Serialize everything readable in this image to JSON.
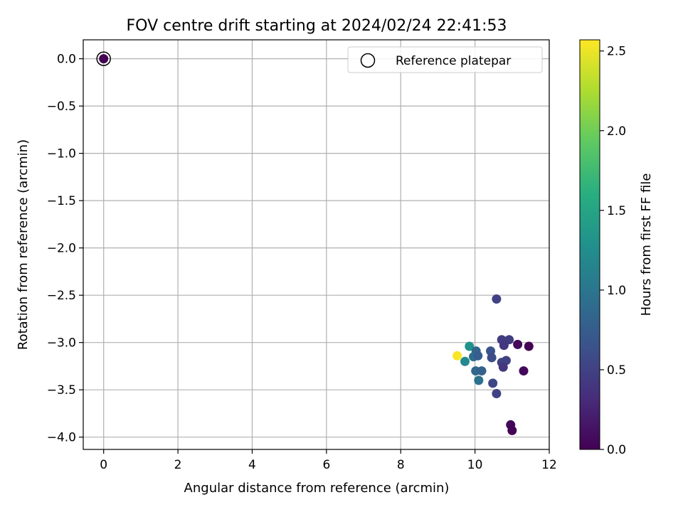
{
  "chart_data": {
    "type": "scatter",
    "title": "FOV centre drift starting at 2024/02/24 22:41:53",
    "xlabel": "Angular distance from reference (arcmin)",
    "ylabel": "Rotation from reference (arcmin)",
    "xlim": [
      -0.55,
      12
    ],
    "ylim": [
      -4.13,
      0.2
    ],
    "xticks": [
      0,
      2,
      4,
      6,
      8,
      10,
      12
    ],
    "xtick_labels": [
      "0",
      "2",
      "4",
      "6",
      "8",
      "10",
      "12"
    ],
    "yticks": [
      0.0,
      -0.5,
      -1.0,
      -1.5,
      -2.0,
      -2.5,
      -3.0,
      -3.5,
      -4.0
    ],
    "ytick_labels": [
      "0.0",
      "−0.5",
      "−1.0",
      "−1.5",
      "−2.0",
      "−2.5",
      "−3.0",
      "−3.5",
      "−4.0"
    ],
    "grid": true,
    "colormap": "viridis",
    "colorbar": {
      "label": "Hours from first FF file",
      "range": [
        0,
        2.57
      ],
      "ticks": [
        0.0,
        0.5,
        1.0,
        1.5,
        2.0,
        2.5
      ],
      "tick_labels": [
        "0.0",
        "0.5",
        "1.0",
        "1.5",
        "2.0",
        "2.5"
      ]
    },
    "legend": {
      "placement": "top-right",
      "entries": [
        "Reference platepar"
      ]
    },
    "reference_point": {
      "x": 0,
      "y": 0,
      "hours": 0.0
    },
    "points": [
      {
        "x": 10.58,
        "y": -2.54,
        "hours": 0.5
      },
      {
        "x": 10.72,
        "y": -2.97,
        "hours": 0.45
      },
      {
        "x": 10.92,
        "y": -2.97,
        "hours": 0.45
      },
      {
        "x": 10.78,
        "y": -3.03,
        "hours": 0.4
      },
      {
        "x": 11.15,
        "y": -3.02,
        "hours": 0.05
      },
      {
        "x": 11.45,
        "y": -3.04,
        "hours": 0.0
      },
      {
        "x": 9.85,
        "y": -3.04,
        "hours": 1.3
      },
      {
        "x": 10.03,
        "y": -3.09,
        "hours": 0.85
      },
      {
        "x": 10.42,
        "y": -3.09,
        "hours": 0.65
      },
      {
        "x": 9.52,
        "y": -3.14,
        "hours": 2.55
      },
      {
        "x": 9.96,
        "y": -3.15,
        "hours": 0.9
      },
      {
        "x": 10.08,
        "y": -3.14,
        "hours": 0.75
      },
      {
        "x": 10.45,
        "y": -3.16,
        "hours": 0.6
      },
      {
        "x": 9.73,
        "y": -3.2,
        "hours": 1.2
      },
      {
        "x": 10.72,
        "y": -3.21,
        "hours": 0.5
      },
      {
        "x": 10.84,
        "y": -3.19,
        "hours": 0.5
      },
      {
        "x": 10.76,
        "y": -3.26,
        "hours": 0.4
      },
      {
        "x": 10.02,
        "y": -3.3,
        "hours": 0.85
      },
      {
        "x": 10.18,
        "y": -3.3,
        "hours": 0.8
      },
      {
        "x": 11.31,
        "y": -3.3,
        "hours": 0.05
      },
      {
        "x": 10.1,
        "y": -3.4,
        "hours": 0.95
      },
      {
        "x": 10.48,
        "y": -3.43,
        "hours": 0.55
      },
      {
        "x": 10.58,
        "y": -3.54,
        "hours": 0.5
      },
      {
        "x": 10.96,
        "y": -3.87,
        "hours": 0.05
      },
      {
        "x": 11.0,
        "y": -3.93,
        "hours": 0.02
      }
    ]
  }
}
